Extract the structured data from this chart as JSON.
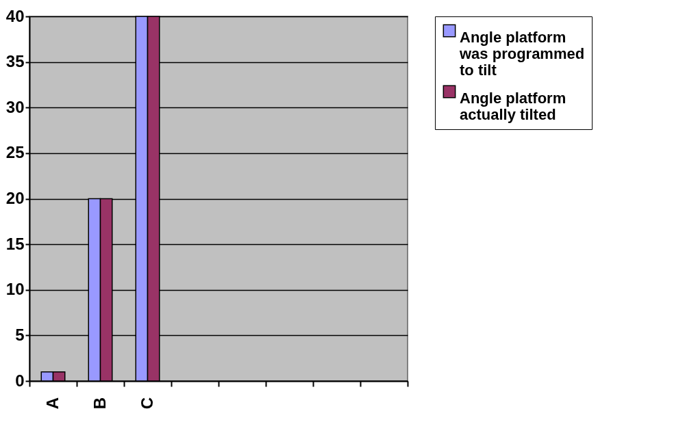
{
  "chart_data": {
    "type": "bar",
    "categories": [
      "A",
      "B",
      "C",
      null,
      null,
      null,
      null,
      null
    ],
    "series": [
      {
        "name": "Angle platform was programmed to tilt",
        "color": "#9999ff",
        "values": [
          1,
          20,
          40,
          null,
          null,
          null,
          null,
          null
        ]
      },
      {
        "name": "Angle platform actually tilted",
        "color": "#993366",
        "values": [
          1,
          20,
          40,
          null,
          null,
          null,
          null,
          null
        ]
      }
    ],
    "ylim": [
      0,
      40
    ],
    "yticks": [
      0,
      5,
      10,
      15,
      20,
      25,
      30,
      35,
      40
    ],
    "grid": "y",
    "legend": "right"
  }
}
